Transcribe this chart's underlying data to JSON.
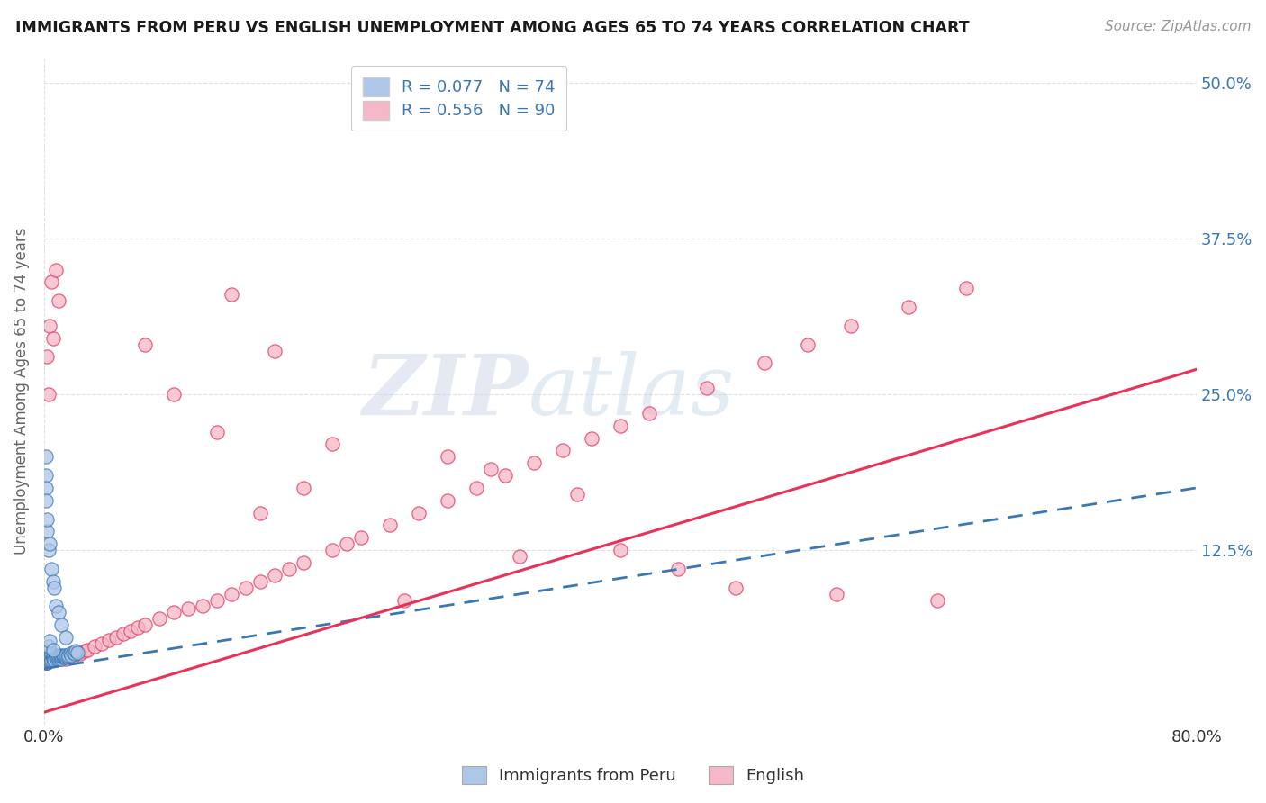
{
  "title": "IMMIGRANTS FROM PERU VS ENGLISH UNEMPLOYMENT AMONG AGES 65 TO 74 YEARS CORRELATION CHART",
  "source": "Source: ZipAtlas.com",
  "ylabel": "Unemployment Among Ages 65 to 74 years",
  "xlim": [
    0.0,
    0.8
  ],
  "ylim": [
    -0.015,
    0.52
  ],
  "blue_color": "#aec6e8",
  "pink_color": "#f4b8c8",
  "blue_line_color": "#3a78b5",
  "pink_line_color": "#e8325a",
  "legend_text_color": "#3a78b5",
  "watermark_zip": "ZIP",
  "watermark_atlas": "atlas",
  "background_color": "#ffffff",
  "grid_color": "#cccccc",
  "axis_label_color": "#666666",
  "right_axis_color": "#3a78b5",
  "bottom_legend": [
    "Immigrants from Peru",
    "English"
  ],
  "peru_line_y_start": 0.03,
  "peru_line_y_end": 0.175,
  "english_line_y_start": -0.005,
  "english_line_y_end": 0.27,
  "peru_x": [
    0.001,
    0.001,
    0.001,
    0.001,
    0.001,
    0.002,
    0.002,
    0.002,
    0.002,
    0.002,
    0.002,
    0.002,
    0.003,
    0.003,
    0.003,
    0.003,
    0.003,
    0.003,
    0.004,
    0.004,
    0.004,
    0.004,
    0.004,
    0.005,
    0.005,
    0.005,
    0.005,
    0.006,
    0.006,
    0.006,
    0.007,
    0.007,
    0.007,
    0.008,
    0.008,
    0.009,
    0.009,
    0.01,
    0.01,
    0.011,
    0.011,
    0.012,
    0.012,
    0.013,
    0.013,
    0.014,
    0.015,
    0.015,
    0.016,
    0.017,
    0.018,
    0.019,
    0.02,
    0.021,
    0.022,
    0.023,
    0.001,
    0.001,
    0.001,
    0.001,
    0.002,
    0.002,
    0.003,
    0.004,
    0.005,
    0.006,
    0.007,
    0.008,
    0.01,
    0.012,
    0.015,
    0.003,
    0.004,
    0.006
  ],
  "peru_y": [
    0.035,
    0.04,
    0.042,
    0.038,
    0.036,
    0.038,
    0.04,
    0.042,
    0.035,
    0.036,
    0.038,
    0.037,
    0.037,
    0.039,
    0.041,
    0.038,
    0.036,
    0.04,
    0.038,
    0.04,
    0.039,
    0.037,
    0.041,
    0.038,
    0.04,
    0.037,
    0.042,
    0.039,
    0.038,
    0.041,
    0.038,
    0.04,
    0.037,
    0.039,
    0.041,
    0.038,
    0.04,
    0.038,
    0.04,
    0.039,
    0.041,
    0.038,
    0.04,
    0.039,
    0.041,
    0.04,
    0.039,
    0.041,
    0.04,
    0.041,
    0.042,
    0.041,
    0.043,
    0.042,
    0.044,
    0.043,
    0.2,
    0.185,
    0.175,
    0.165,
    0.14,
    0.15,
    0.125,
    0.13,
    0.11,
    0.1,
    0.095,
    0.08,
    0.075,
    0.065,
    0.055,
    0.048,
    0.052,
    0.045
  ],
  "english_x": [
    0.001,
    0.001,
    0.001,
    0.001,
    0.001,
    0.001,
    0.001,
    0.001,
    0.001,
    0.001,
    0.002,
    0.002,
    0.002,
    0.002,
    0.002,
    0.002,
    0.002,
    0.002,
    0.003,
    0.003,
    0.003,
    0.003,
    0.004,
    0.004,
    0.004,
    0.005,
    0.005,
    0.006,
    0.006,
    0.007,
    0.008,
    0.009,
    0.01,
    0.011,
    0.012,
    0.013,
    0.014,
    0.015,
    0.016,
    0.018,
    0.02,
    0.022,
    0.025,
    0.028,
    0.03,
    0.035,
    0.04,
    0.045,
    0.05,
    0.055,
    0.06,
    0.065,
    0.07,
    0.08,
    0.09,
    0.1,
    0.11,
    0.12,
    0.13,
    0.14,
    0.15,
    0.16,
    0.17,
    0.18,
    0.2,
    0.21,
    0.22,
    0.24,
    0.26,
    0.28,
    0.3,
    0.32,
    0.34,
    0.36,
    0.38,
    0.4,
    0.42,
    0.46,
    0.5,
    0.53,
    0.56,
    0.6,
    0.64,
    0.002,
    0.003,
    0.004,
    0.005,
    0.006,
    0.008,
    0.01
  ],
  "english_y": [
    0.035,
    0.038,
    0.04,
    0.036,
    0.039,
    0.037,
    0.041,
    0.036,
    0.038,
    0.04,
    0.036,
    0.039,
    0.037,
    0.041,
    0.038,
    0.035,
    0.04,
    0.037,
    0.038,
    0.04,
    0.036,
    0.039,
    0.038,
    0.04,
    0.037,
    0.038,
    0.04,
    0.039,
    0.037,
    0.04,
    0.038,
    0.039,
    0.038,
    0.04,
    0.038,
    0.039,
    0.04,
    0.038,
    0.04,
    0.04,
    0.04,
    0.042,
    0.042,
    0.044,
    0.045,
    0.048,
    0.05,
    0.053,
    0.055,
    0.058,
    0.06,
    0.063,
    0.065,
    0.07,
    0.075,
    0.078,
    0.08,
    0.085,
    0.09,
    0.095,
    0.1,
    0.105,
    0.11,
    0.115,
    0.125,
    0.13,
    0.135,
    0.145,
    0.155,
    0.165,
    0.175,
    0.185,
    0.195,
    0.205,
    0.215,
    0.225,
    0.235,
    0.255,
    0.275,
    0.29,
    0.305,
    0.32,
    0.335,
    0.28,
    0.25,
    0.305,
    0.34,
    0.295,
    0.35,
    0.325
  ],
  "english_outliers_x": [
    0.25,
    0.33,
    0.4,
    0.48,
    0.55,
    0.62,
    0.18,
    0.28,
    0.37,
    0.12,
    0.2,
    0.31,
    0.15,
    0.44,
    0.07,
    0.09,
    0.13,
    0.16
  ],
  "english_outliers_y": [
    0.085,
    0.12,
    0.125,
    0.095,
    0.09,
    0.085,
    0.175,
    0.2,
    0.17,
    0.22,
    0.21,
    0.19,
    0.155,
    0.11,
    0.29,
    0.25,
    0.33,
    0.285
  ]
}
